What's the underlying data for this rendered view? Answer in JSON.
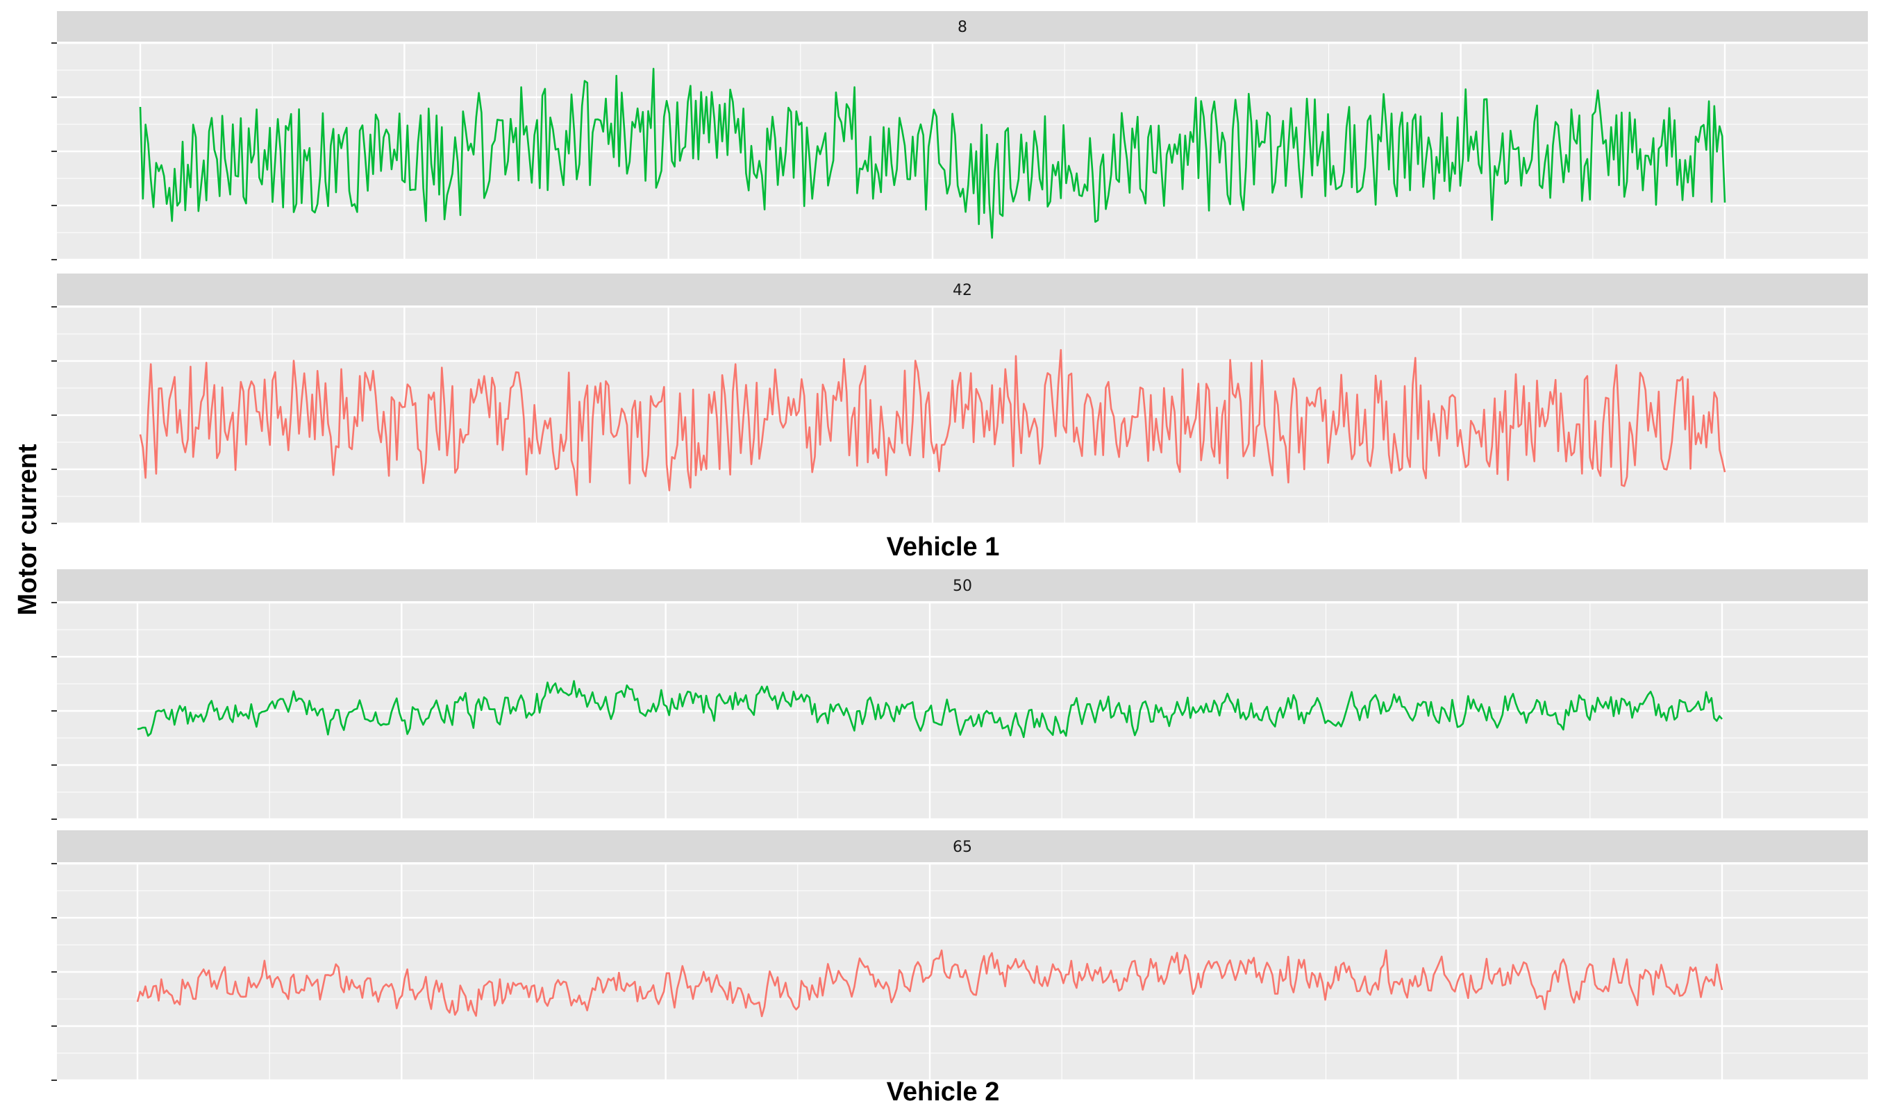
{
  "ylabel": "Motor current",
  "colors": {
    "panel_bg": "#ebebeb",
    "strip_bg": "#d9d9d9",
    "grid": "#ffffff",
    "green": "#00ba38",
    "red": "#f8766d"
  },
  "chart_data": [
    {
      "type": "line",
      "group": "Vehicle 1",
      "xlabel": "Vehicle 1",
      "facet": "8",
      "color": "green",
      "x_ticks_labeled": false,
      "y_ticks_labeled": false,
      "grid": true,
      "series": [
        {
          "n": 600,
          "level": 0.5,
          "amp": 0.17,
          "smooth": 0.06,
          "seed": 8,
          "drift": [
            0.42,
            0.43,
            0.4,
            0.5,
            0.64,
            0.52,
            0.5,
            0.4,
            0.48,
            0.5,
            0.5,
            0.49,
            0.49,
            0.49
          ]
        }
      ]
    },
    {
      "type": "line",
      "group": "Vehicle 1",
      "xlabel": "Vehicle 1",
      "facet": "42",
      "color": "red",
      "x_ticks_labeled": false,
      "y_ticks_labeled": false,
      "grid": true,
      "series": [
        {
          "n": 600,
          "level": 0.47,
          "amp": 0.17,
          "smooth": 0.1,
          "seed": 42,
          "drift": [
            0.44,
            0.5,
            0.52,
            0.46,
            0.43,
            0.46,
            0.48,
            0.52,
            0.46,
            0.48,
            0.44,
            0.44,
            0.46,
            0.44
          ]
        }
      ]
    },
    {
      "type": "line",
      "group": "Vehicle 2",
      "xlabel": "Vehicle 2",
      "facet": "50",
      "color": "green",
      "x_ticks_labeled": false,
      "y_ticks_labeled": false,
      "grid": true,
      "series": [
        {
          "n": 600,
          "level": 0.52,
          "amp": 0.06,
          "smooth": 0.45,
          "seed": 50,
          "drift": [
            0.46,
            0.5,
            0.48,
            0.53,
            0.55,
            0.53,
            0.49,
            0.44,
            0.48,
            0.5,
            0.5,
            0.52,
            0.48,
            0.52
          ]
        }
      ]
    },
    {
      "type": "line",
      "group": "Vehicle 2",
      "xlabel": "Vehicle 2",
      "facet": "65",
      "color": "red",
      "x_ticks_labeled": false,
      "y_ticks_labeled": false,
      "grid": true,
      "series": [
        {
          "n": 600,
          "level": 0.52,
          "amp": 0.07,
          "smooth": 0.45,
          "seed": 65,
          "drift": [
            0.42,
            0.46,
            0.42,
            0.4,
            0.42,
            0.4,
            0.46,
            0.5,
            0.48,
            0.49,
            0.48,
            0.47,
            0.45,
            0.48
          ]
        }
      ]
    }
  ]
}
